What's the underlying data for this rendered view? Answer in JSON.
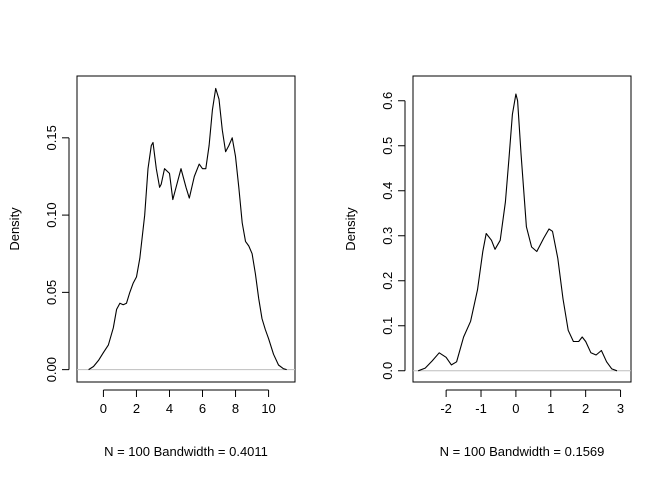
{
  "chart_data": [
    {
      "type": "line",
      "title": "",
      "xlabel": "N = 100   Bandwidth = 0.4011",
      "ylabel": "Density",
      "xlim": [
        -1.6,
        11.6
      ],
      "ylim": [
        -0.008,
        0.19
      ],
      "xticks": [
        0,
        2,
        4,
        6,
        8,
        10
      ],
      "yticks": [
        0.0,
        0.05,
        0.1,
        0.15
      ],
      "ytick_labels": [
        "0.00",
        "0.05",
        "0.10",
        "0.15"
      ],
      "baseline": 0,
      "grid": false,
      "series": [
        {
          "x": [
            -0.9,
            -0.6,
            -0.3,
            0.0,
            0.3,
            0.6,
            0.8,
            1.0,
            1.2,
            1.4,
            1.6,
            1.8,
            2.0,
            2.2,
            2.5,
            2.7,
            2.9,
            3.0,
            3.2,
            3.4,
            3.5,
            3.7,
            4.0,
            4.2,
            4.5,
            4.7,
            5.0,
            5.2,
            5.5,
            5.8,
            6.0,
            6.2,
            6.4,
            6.6,
            6.8,
            7.0,
            7.2,
            7.4,
            7.6,
            7.8,
            8.0,
            8.2,
            8.4,
            8.6,
            8.8,
            9.0,
            9.2,
            9.4,
            9.6,
            9.8,
            10.0,
            10.3,
            10.6,
            10.9,
            11.1
          ],
          "y": [
            0.0,
            0.002,
            0.006,
            0.011,
            0.016,
            0.027,
            0.039,
            0.043,
            0.042,
            0.043,
            0.05,
            0.056,
            0.06,
            0.072,
            0.1,
            0.13,
            0.145,
            0.147,
            0.13,
            0.118,
            0.12,
            0.13,
            0.127,
            0.11,
            0.122,
            0.13,
            0.118,
            0.111,
            0.125,
            0.133,
            0.13,
            0.13,
            0.145,
            0.168,
            0.182,
            0.175,
            0.155,
            0.141,
            0.145,
            0.15,
            0.138,
            0.118,
            0.095,
            0.083,
            0.08,
            0.075,
            0.062,
            0.046,
            0.033,
            0.026,
            0.02,
            0.01,
            0.003,
            0.0006,
            0.0
          ]
        }
      ]
    },
    {
      "type": "line",
      "title": "",
      "xlabel": "N = 100   Bandwidth = 0.1569",
      "ylabel": "Density",
      "xlim": [
        -2.95,
        3.3
      ],
      "ylim": [
        -0.025,
        0.655
      ],
      "xticks": [
        -2,
        -1,
        0,
        1,
        2,
        3
      ],
      "yticks": [
        0.0,
        0.1,
        0.2,
        0.3,
        0.4,
        0.5,
        0.6
      ],
      "ytick_labels": [
        "0.0",
        "0.1",
        "0.2",
        "0.3",
        "0.4",
        "0.5",
        "0.6"
      ],
      "baseline": 0,
      "grid": false,
      "series": [
        {
          "x": [
            -2.8,
            -2.6,
            -2.4,
            -2.2,
            -2.0,
            -1.85,
            -1.7,
            -1.5,
            -1.3,
            -1.1,
            -0.95,
            -0.85,
            -0.7,
            -0.6,
            -0.45,
            -0.3,
            -0.2,
            -0.1,
            0.0,
            0.05,
            0.15,
            0.3,
            0.45,
            0.6,
            0.8,
            0.95,
            1.05,
            1.2,
            1.35,
            1.5,
            1.65,
            1.8,
            1.9,
            2.0,
            2.15,
            2.3,
            2.45,
            2.6,
            2.75,
            2.9
          ],
          "y": [
            0.0,
            0.006,
            0.022,
            0.04,
            0.03,
            0.013,
            0.02,
            0.075,
            0.11,
            0.18,
            0.265,
            0.305,
            0.29,
            0.27,
            0.29,
            0.375,
            0.47,
            0.57,
            0.615,
            0.6,
            0.48,
            0.32,
            0.275,
            0.265,
            0.295,
            0.315,
            0.31,
            0.25,
            0.16,
            0.09,
            0.065,
            0.065,
            0.075,
            0.065,
            0.04,
            0.035,
            0.045,
            0.02,
            0.004,
            0.0
          ]
        }
      ]
    }
  ]
}
